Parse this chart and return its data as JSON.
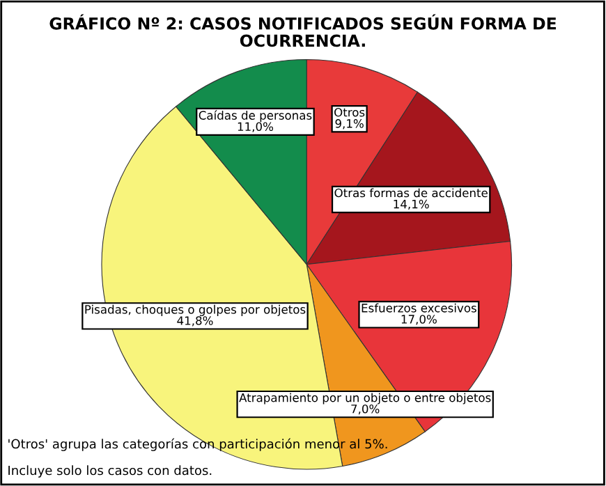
{
  "chart_data": {
    "type": "pie",
    "title": "GRÁFICO Nº 2: CASOS NOTIFICADOS SEGÚN FORMA DE\nOCURRENCIA.",
    "categories": [
      "Otros",
      "Otras formas de accidente",
      "Esfuerzos excesivos",
      "Atrapamiento por un objeto o entre objetos",
      "Pisadas, choques o golpes por objetos",
      "Caídas de personas"
    ],
    "values": [
      9.1,
      14.1,
      17.0,
      7.0,
      41.8,
      11.0
    ],
    "value_labels": [
      "9,1%",
      "14,1%",
      "17,0%",
      "7,0%",
      "41,8%",
      "11,0%"
    ],
    "colors": [
      "#e83a3a",
      "#a5161d",
      "#e8353a",
      "#f0961e",
      "#f8f47c",
      "#138c4c"
    ],
    "annotations": [
      "'Otros' agrupa las categorías con participación menor al 5%.",
      "Incluye solo los casos con datos."
    ]
  }
}
